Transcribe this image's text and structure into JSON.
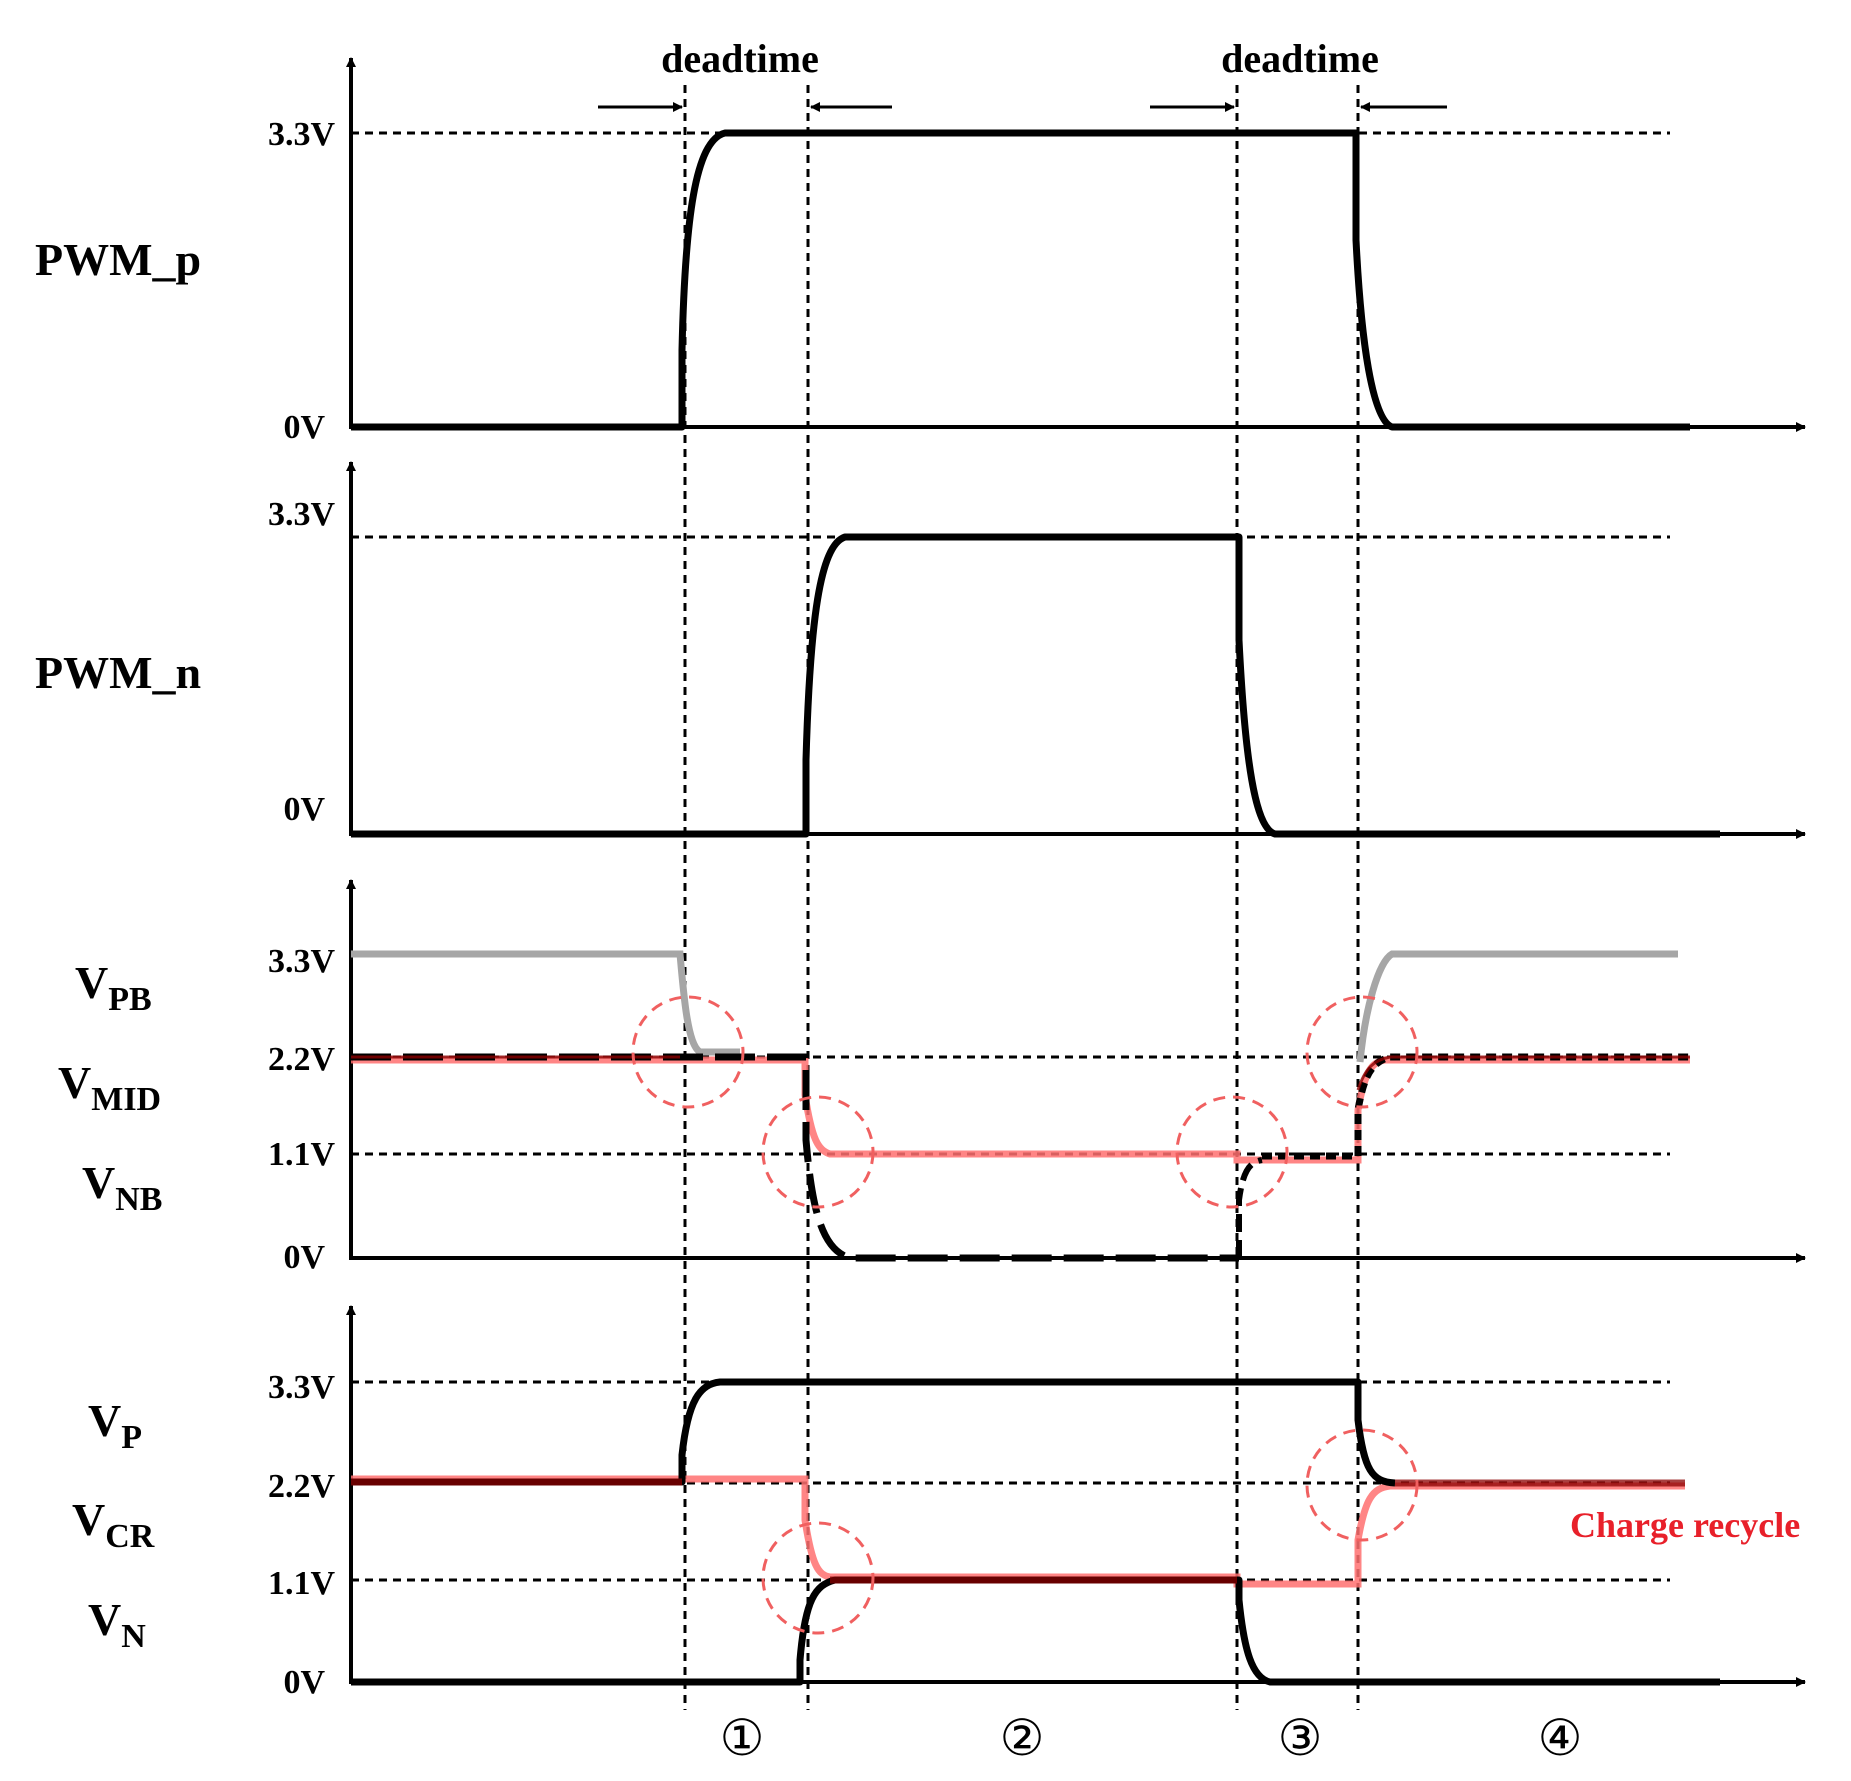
{
  "annotations": {
    "deadtime_left": "deadtime",
    "deadtime_right": "deadtime",
    "charge_recycle": "Charge recycle",
    "phases": [
      "①",
      "②",
      "③",
      "④"
    ]
  },
  "panels": [
    {
      "id": "pwm-p",
      "signal_label": "PWM_p",
      "ticks": {
        "high": "3.3V",
        "low": "0V"
      }
    },
    {
      "id": "pwm-n",
      "signal_label": "PWM_n",
      "ticks": {
        "high": "3.3V",
        "low": "0V"
      }
    },
    {
      "id": "bias",
      "signals": [
        {
          "main": "V",
          "sub": "PB"
        },
        {
          "main": "V",
          "sub": "MID"
        },
        {
          "main": "V",
          "sub": "NB"
        }
      ],
      "ticks": [
        "3.3V",
        "2.2V",
        "1.1V",
        "0V"
      ]
    },
    {
      "id": "rails",
      "signals": [
        {
          "main": "V",
          "sub": "P"
        },
        {
          "main": "V",
          "sub": "CR"
        },
        {
          "main": "V",
          "sub": "N"
        }
      ],
      "ticks": [
        "3.3V",
        "2.2V",
        "1.1V",
        "0V"
      ]
    }
  ],
  "colors": {
    "black_trace": "#000000",
    "grey_trace": "#a6a6a6",
    "pink_trace": "#ff7070",
    "darkred_trace": "#8b0000",
    "highlight_circle": "#f06060",
    "annotation_red": "#e8202a"
  }
}
